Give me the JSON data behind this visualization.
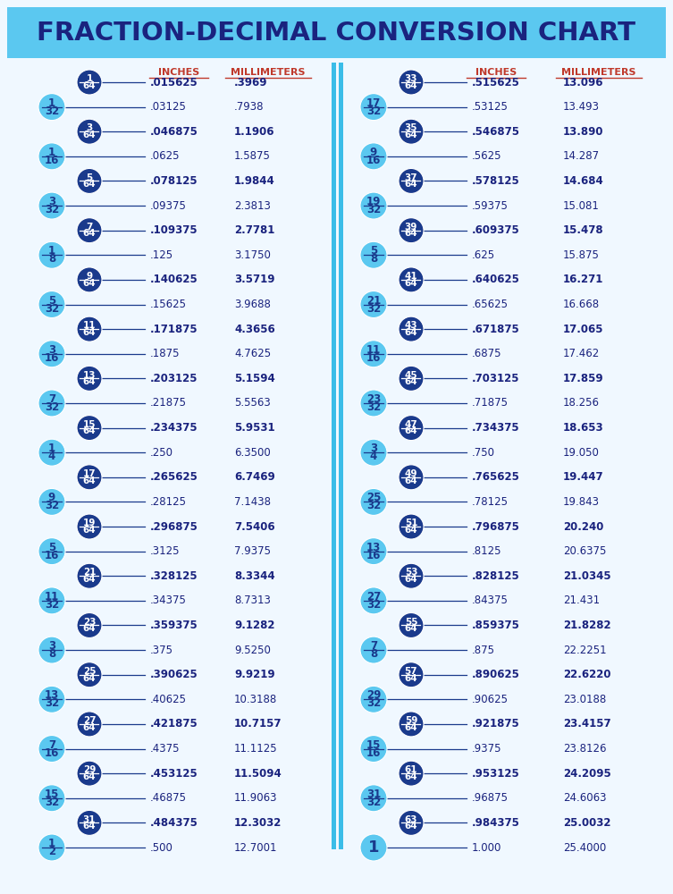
{
  "title": "FRACTION-DECIMAL CONVERSION CHART",
  "title_bg": "#5bc8f0",
  "title_color": "#1a237e",
  "header_color": "#c0392b",
  "text_color": "#1a237e",
  "bg_color": "#f0f8ff",
  "col_header_inches": "INCHES",
  "col_header_mm": "MILLIMETERS",
  "dark_circle_color": "#1a3a8c",
  "light_circle_color": "#5bc8f0",
  "line_color": "#1a3a8c",
  "divider_color": "#3bbde8",
  "rows": [
    {
      "frac": "1/64",
      "bold": true,
      "inches": ".015625",
      "mm": ".3969"
    },
    {
      "frac": "1/32",
      "bold": false,
      "inches": ".03125",
      "mm": ".7938"
    },
    {
      "frac": "3/64",
      "bold": true,
      "inches": ".046875",
      "mm": "1.1906"
    },
    {
      "frac": "1/16",
      "bold": false,
      "inches": ".0625",
      "mm": "1.5875"
    },
    {
      "frac": "5/64",
      "bold": true,
      "inches": ".078125",
      "mm": "1.9844"
    },
    {
      "frac": "3/32",
      "bold": false,
      "inches": ".09375",
      "mm": "2.3813"
    },
    {
      "frac": "7/64",
      "bold": true,
      "inches": ".109375",
      "mm": "2.7781"
    },
    {
      "frac": "1/8",
      "bold": false,
      "inches": ".125",
      "mm": "3.1750"
    },
    {
      "frac": "9/64",
      "bold": true,
      "inches": ".140625",
      "mm": "3.5719"
    },
    {
      "frac": "5/32",
      "bold": false,
      "inches": ".15625",
      "mm": "3.9688"
    },
    {
      "frac": "11/64",
      "bold": true,
      "inches": ".171875",
      "mm": "4.3656"
    },
    {
      "frac": "3/16",
      "bold": false,
      "inches": ".1875",
      "mm": "4.7625"
    },
    {
      "frac": "13/64",
      "bold": true,
      "inches": ".203125",
      "mm": "5.1594"
    },
    {
      "frac": "7/32",
      "bold": false,
      "inches": ".21875",
      "mm": "5.5563"
    },
    {
      "frac": "15/64",
      "bold": true,
      "inches": ".234375",
      "mm": "5.9531"
    },
    {
      "frac": "1/4",
      "bold": false,
      "inches": ".250",
      "mm": "6.3500"
    },
    {
      "frac": "17/64",
      "bold": true,
      "inches": ".265625",
      "mm": "6.7469"
    },
    {
      "frac": "9/32",
      "bold": false,
      "inches": ".28125",
      "mm": "7.1438"
    },
    {
      "frac": "19/64",
      "bold": true,
      "inches": ".296875",
      "mm": "7.5406"
    },
    {
      "frac": "5/16",
      "bold": false,
      "inches": ".3125",
      "mm": "7.9375"
    },
    {
      "frac": "21/64",
      "bold": true,
      "inches": ".328125",
      "mm": "8.3344"
    },
    {
      "frac": "11/32",
      "bold": false,
      "inches": ".34375",
      "mm": "8.7313"
    },
    {
      "frac": "23/64",
      "bold": true,
      "inches": ".359375",
      "mm": "9.1282"
    },
    {
      "frac": "3/8",
      "bold": false,
      "inches": ".375",
      "mm": "9.5250"
    },
    {
      "frac": "25/64",
      "bold": true,
      "inches": ".390625",
      "mm": "9.9219"
    },
    {
      "frac": "13/32",
      "bold": false,
      "inches": ".40625",
      "mm": "10.3188"
    },
    {
      "frac": "27/64",
      "bold": true,
      "inches": ".421875",
      "mm": "10.7157"
    },
    {
      "frac": "7/16",
      "bold": false,
      "inches": ".4375",
      "mm": "11.1125"
    },
    {
      "frac": "29/64",
      "bold": true,
      "inches": ".453125",
      "mm": "11.5094"
    },
    {
      "frac": "15/32",
      "bold": false,
      "inches": ".46875",
      "mm": "11.9063"
    },
    {
      "frac": "31/64",
      "bold": true,
      "inches": ".484375",
      "mm": "12.3032"
    },
    {
      "frac": "1/2",
      "bold": false,
      "inches": ".500",
      "mm": "12.7001"
    },
    {
      "frac": "33/64",
      "bold": true,
      "inches": ".515625",
      "mm": "13.096"
    },
    {
      "frac": "17/32",
      "bold": false,
      "inches": ".53125",
      "mm": "13.493"
    },
    {
      "frac": "35/64",
      "bold": true,
      "inches": ".546875",
      "mm": "13.890"
    },
    {
      "frac": "9/16",
      "bold": false,
      "inches": ".5625",
      "mm": "14.287"
    },
    {
      "frac": "37/64",
      "bold": true,
      "inches": ".578125",
      "mm": "14.684"
    },
    {
      "frac": "19/32",
      "bold": false,
      "inches": ".59375",
      "mm": "15.081"
    },
    {
      "frac": "39/64",
      "bold": true,
      "inches": ".609375",
      "mm": "15.478"
    },
    {
      "frac": "5/8",
      "bold": false,
      "inches": ".625",
      "mm": "15.875"
    },
    {
      "frac": "41/64",
      "bold": true,
      "inches": ".640625",
      "mm": "16.271"
    },
    {
      "frac": "21/32",
      "bold": false,
      "inches": ".65625",
      "mm": "16.668"
    },
    {
      "frac": "43/64",
      "bold": true,
      "inches": ".671875",
      "mm": "17.065"
    },
    {
      "frac": "11/16",
      "bold": false,
      "inches": ".6875",
      "mm": "17.462"
    },
    {
      "frac": "45/64",
      "bold": true,
      "inches": ".703125",
      "mm": "17.859"
    },
    {
      "frac": "23/32",
      "bold": false,
      "inches": ".71875",
      "mm": "18.256"
    },
    {
      "frac": "47/64",
      "bold": true,
      "inches": ".734375",
      "mm": "18.653"
    },
    {
      "frac": "3/4",
      "bold": false,
      "inches": ".750",
      "mm": "19.050"
    },
    {
      "frac": "49/64",
      "bold": true,
      "inches": ".765625",
      "mm": "19.447"
    },
    {
      "frac": "25/32",
      "bold": false,
      "inches": ".78125",
      "mm": "19.843"
    },
    {
      "frac": "51/64",
      "bold": true,
      "inches": ".796875",
      "mm": "20.240"
    },
    {
      "frac": "13/16",
      "bold": false,
      "inches": ".8125",
      "mm": "20.6375"
    },
    {
      "frac": "53/64",
      "bold": true,
      "inches": ".828125",
      "mm": "21.0345"
    },
    {
      "frac": "27/32",
      "bold": false,
      "inches": ".84375",
      "mm": "21.431"
    },
    {
      "frac": "55/64",
      "bold": true,
      "inches": ".859375",
      "mm": "21.8282"
    },
    {
      "frac": "7/8",
      "bold": false,
      "inches": ".875",
      "mm": "22.2251"
    },
    {
      "frac": "57/64",
      "bold": true,
      "inches": ".890625",
      "mm": "22.6220"
    },
    {
      "frac": "29/32",
      "bold": false,
      "inches": ".90625",
      "mm": "23.0188"
    },
    {
      "frac": "59/64",
      "bold": true,
      "inches": ".921875",
      "mm": "23.4157"
    },
    {
      "frac": "15/16",
      "bold": false,
      "inches": ".9375",
      "mm": "23.8126"
    },
    {
      "frac": "61/64",
      "bold": true,
      "inches": ".953125",
      "mm": "24.2095"
    },
    {
      "frac": "31/32",
      "bold": false,
      "inches": ".96875",
      "mm": "24.6063"
    },
    {
      "frac": "63/64",
      "bold": true,
      "inches": ".984375",
      "mm": "25.0032"
    },
    {
      "frac": "1",
      "bold": false,
      "inches": "1.000",
      "mm": "25.4000"
    }
  ]
}
